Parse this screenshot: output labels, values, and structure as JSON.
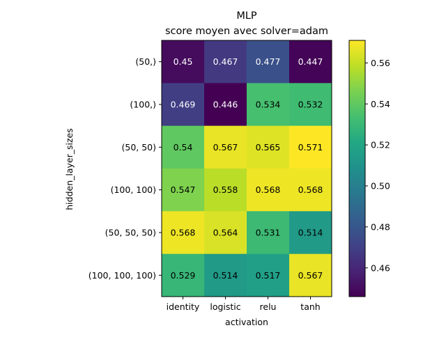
{
  "chart_data": {
    "type": "heatmap",
    "title": "MLP",
    "subtitle": "score moyen avec solver=adam",
    "xlabel": "activation",
    "ylabel": "hidden_layer_sizes",
    "x_categories": [
      "identity",
      "logistic",
      "relu",
      "tanh"
    ],
    "y_categories": [
      "(50,)",
      "(100,)",
      "(50, 50)",
      "(100, 100)",
      "(50, 50, 50)",
      "(100, 100, 100)"
    ],
    "values": [
      [
        0.45,
        0.467,
        0.477,
        0.447
      ],
      [
        0.469,
        0.446,
        0.534,
        0.532
      ],
      [
        0.54,
        0.567,
        0.565,
        0.571
      ],
      [
        0.547,
        0.558,
        0.568,
        0.568
      ],
      [
        0.568,
        0.564,
        0.531,
        0.514
      ],
      [
        0.529,
        0.514,
        0.517,
        0.567
      ]
    ],
    "cell_labels": [
      [
        "0.45",
        "0.467",
        "0.477",
        "0.447"
      ],
      [
        "0.469",
        "0.446",
        "0.534",
        "0.532"
      ],
      [
        "0.54",
        "0.567",
        "0.565",
        "0.571"
      ],
      [
        "0.547",
        "0.558",
        "0.568",
        "0.568"
      ],
      [
        "0.568",
        "0.564",
        "0.531",
        "0.514"
      ],
      [
        "0.529",
        "0.514",
        "0.517",
        "0.567"
      ]
    ],
    "colormap": "viridis",
    "color_range": [
      0.446,
      0.571
    ],
    "colorbar": {
      "ticks": [
        0.46,
        0.48,
        0.5,
        0.52,
        0.54,
        0.56
      ],
      "tick_labels": [
        "0.46",
        "0.48",
        "0.50",
        "0.52",
        "0.54",
        "0.56"
      ]
    },
    "text_color_dark": "#000000",
    "text_color_light": "#ffffff"
  }
}
